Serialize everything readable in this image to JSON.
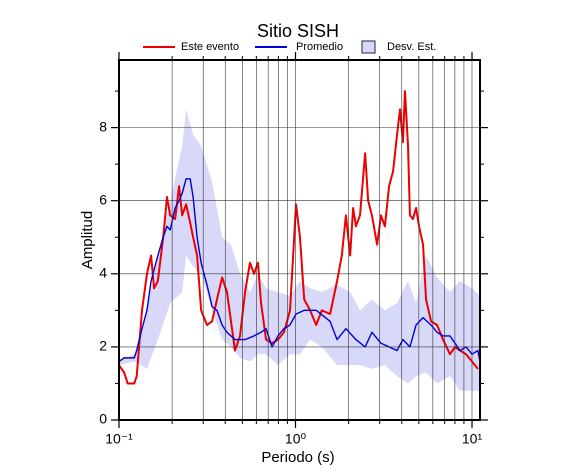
{
  "chart_data": {
    "type": "line",
    "title": "Sitio SISH",
    "x_label": "Periodo (s)",
    "y_label": "Amplitud",
    "log_x": true,
    "grid": true,
    "xlim": [
      0.1,
      11.1
    ],
    "ylim": [
      0,
      9.85
    ],
    "xticks": [
      {
        "value": 0.1,
        "label": "10⁻¹"
      },
      {
        "value": 1,
        "label": "10⁰"
      },
      {
        "value": 10,
        "label": "10¹"
      }
    ],
    "xminorticks": [
      0.2,
      0.3,
      0.4,
      0.5,
      0.6,
      0.7,
      0.8,
      0.9,
      2,
      3,
      4,
      5,
      6,
      7,
      8,
      9
    ],
    "yticks": [
      0,
      2,
      4,
      6,
      8
    ],
    "yminorticks": [
      1,
      3,
      5,
      7,
      9
    ],
    "series": [
      {
        "name": "Este evento",
        "color": "#ee0000",
        "x": [
          0.1,
          0.107,
          0.112,
          0.122,
          0.126,
          0.135,
          0.144,
          0.152,
          0.158,
          0.166,
          0.178,
          0.187,
          0.195,
          0.208,
          0.219,
          0.228,
          0.24,
          0.253,
          0.263,
          0.277,
          0.292,
          0.315,
          0.337,
          0.359,
          0.384,
          0.409,
          0.431,
          0.454,
          0.485,
          0.518,
          0.552,
          0.582,
          0.613,
          0.638,
          0.681,
          0.736,
          0.796,
          0.861,
          0.931,
          1.007,
          1.06,
          1.12,
          1.21,
          1.31,
          1.41,
          1.57,
          1.72,
          1.83,
          1.93,
          2.04,
          2.12,
          2.2,
          2.32,
          2.48,
          2.58,
          2.71,
          2.9,
          3.05,
          3.21,
          3.39,
          3.57,
          3.76,
          3.91,
          4.06,
          4.17,
          4.34,
          4.45,
          4.63,
          4.82,
          5.01,
          5.28,
          5.49,
          5.86,
          6.34,
          6.85,
          7.5,
          8.01,
          8.55,
          9.25,
          10.0,
          10.8
        ],
        "values": [
          1.5,
          1.3,
          1.0,
          1.0,
          1.2,
          3.0,
          4.0,
          4.5,
          3.6,
          3.8,
          5.0,
          6.1,
          5.6,
          5.5,
          6.4,
          5.6,
          5.9,
          5.4,
          5.0,
          4.5,
          3.0,
          2.6,
          2.7,
          3.3,
          3.9,
          3.5,
          2.7,
          1.9,
          2.3,
          3.5,
          4.3,
          4.0,
          4.3,
          3.2,
          2.2,
          2.1,
          2.2,
          2.4,
          3.0,
          5.9,
          5.0,
          3.3,
          3.0,
          2.6,
          3.0,
          2.9,
          3.8,
          4.5,
          5.6,
          4.5,
          5.8,
          5.3,
          5.6,
          7.3,
          6.0,
          5.6,
          4.8,
          5.6,
          5.3,
          6.4,
          6.8,
          7.8,
          8.5,
          7.6,
          9.0,
          7.5,
          5.6,
          5.5,
          5.8,
          5.3,
          4.8,
          3.3,
          2.7,
          2.6,
          2.2,
          1.8,
          2.0,
          1.9,
          1.8,
          1.6,
          1.4
        ]
      },
      {
        "name": "Promedio",
        "color": "#0000dd",
        "x": [
          0.1,
          0.107,
          0.122,
          0.126,
          0.135,
          0.144,
          0.152,
          0.166,
          0.178,
          0.187,
          0.195,
          0.208,
          0.219,
          0.228,
          0.24,
          0.253,
          0.263,
          0.277,
          0.292,
          0.315,
          0.337,
          0.359,
          0.384,
          0.409,
          0.454,
          0.518,
          0.582,
          0.638,
          0.681,
          0.736,
          0.796,
          0.861,
          0.931,
          1.007,
          1.12,
          1.31,
          1.57,
          1.72,
          1.93,
          2.2,
          2.48,
          2.71,
          3.05,
          3.39,
          3.76,
          4.06,
          4.45,
          4.82,
          5.28,
          5.86,
          6.34,
          6.85,
          7.5,
          8.01,
          8.55,
          9.25,
          10.0,
          10.8,
          11.1
        ],
        "values": [
          1.6,
          1.7,
          1.7,
          1.9,
          2.5,
          3.0,
          3.8,
          4.5,
          5.0,
          5.3,
          5.2,
          5.8,
          6.0,
          6.2,
          6.6,
          6.6,
          6.1,
          5.0,
          4.3,
          3.7,
          3.1,
          3.0,
          2.6,
          2.4,
          2.2,
          2.2,
          2.3,
          2.4,
          2.5,
          2.0,
          2.3,
          2.5,
          2.6,
          2.9,
          3.0,
          3.0,
          2.7,
          2.2,
          2.5,
          2.2,
          2.0,
          2.4,
          2.1,
          2.0,
          1.9,
          2.2,
          2.0,
          2.6,
          2.8,
          2.6,
          2.4,
          2.3,
          2.3,
          2.1,
          1.9,
          2.0,
          1.8,
          1.9,
          1.6
        ]
      },
      {
        "name": "Desv. Est.",
        "color": "#d8d8f8",
        "border": "#222244",
        "x": [
          0.1,
          0.122,
          0.144,
          0.166,
          0.195,
          0.228,
          0.24,
          0.263,
          0.292,
          0.337,
          0.384,
          0.431,
          0.485,
          0.552,
          0.613,
          0.681,
          0.796,
          0.931,
          1.06,
          1.21,
          1.41,
          1.72,
          2.04,
          2.32,
          2.71,
          3.21,
          3.76,
          4.34,
          4.82,
          5.49,
          6.34,
          7.5,
          8.55,
          10.0,
          11.1
        ],
        "lower": [
          1.5,
          1.6,
          1.4,
          2.2,
          3.2,
          3.5,
          4.5,
          4.2,
          4.0,
          3.0,
          2.2,
          2.0,
          1.7,
          1.6,
          1.8,
          1.8,
          1.5,
          1.8,
          1.8,
          2.2,
          2.0,
          1.5,
          1.5,
          1.5,
          1.4,
          1.5,
          1.2,
          1.0,
          1.2,
          1.3,
          1.0,
          1.2,
          0.8,
          0.8,
          0.8
        ],
        "upper": [
          1.6,
          1.8,
          3.0,
          4.5,
          6.0,
          7.5,
          8.5,
          7.8,
          7.5,
          6.5,
          5.0,
          4.8,
          4.0,
          3.5,
          4.0,
          3.6,
          3.5,
          3.4,
          3.8,
          3.6,
          3.5,
          3.7,
          3.5,
          3.0,
          3.3,
          3.0,
          3.2,
          3.8,
          3.2,
          4.5,
          3.9,
          3.5,
          3.8,
          3.6,
          3.4
        ]
      }
    ]
  }
}
